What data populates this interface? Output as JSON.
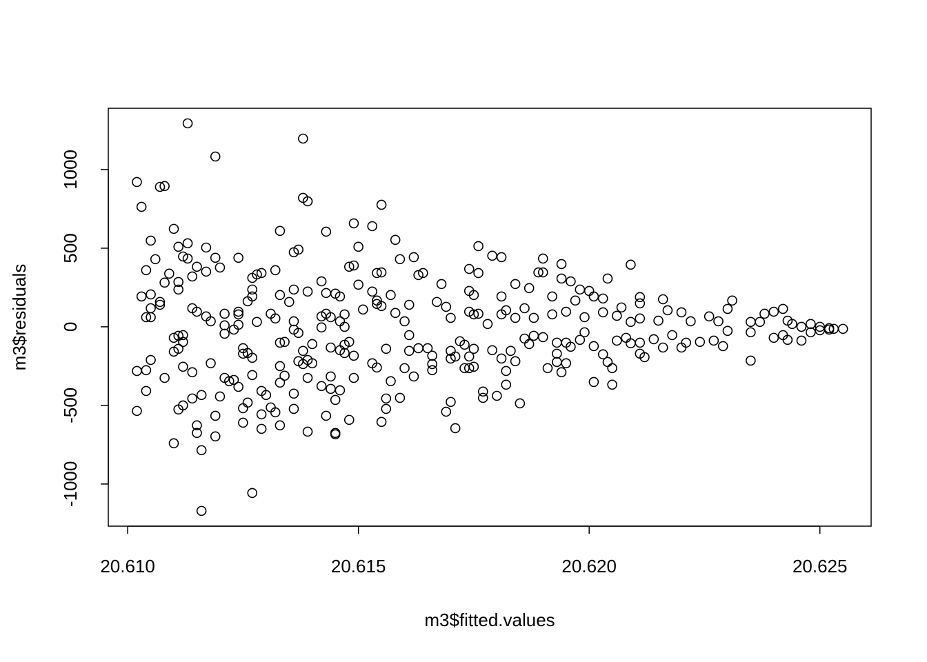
{
  "chart_data": {
    "type": "scatter",
    "x_label": "m3$fitted.values",
    "y_label": "m3$residuals",
    "xlim": [
      20.60958,
      20.62611
    ],
    "ylim": [
      -1268,
      1390
    ],
    "xticks": [
      {
        "value": 20.61,
        "label": "20.610"
      },
      {
        "value": 20.615,
        "label": "20.615"
      },
      {
        "value": 20.62,
        "label": "20.620"
      },
      {
        "value": 20.625,
        "label": "20.625"
      }
    ],
    "yticks": [
      -1000,
      -500,
      0,
      500,
      1000
    ],
    "color": "#000000",
    "x": [
      20.6113,
      20.6138,
      20.6119,
      20.6102,
      20.6107,
      20.6108,
      20.6103,
      20.6138,
      20.6139,
      20.6155,
      20.611,
      20.6133,
      20.6149,
      20.6153,
      20.6143,
      20.6105,
      20.6111,
      20.6113,
      20.6117,
      20.6137,
      20.615,
      20.6158,
      20.6176,
      20.6179,
      20.6181,
      20.619,
      20.6209,
      20.6194,
      20.6106,
      20.6112,
      20.6113,
      20.6115,
      20.6119,
      20.6124,
      20.6129,
      20.6132,
      20.6104,
      20.6109,
      20.6117,
      20.612,
      20.6127,
      20.6128,
      20.6136,
      20.6142,
      20.6148,
      20.6149,
      20.615,
      20.6154,
      20.6155,
      20.6159,
      20.6162,
      20.6164,
      20.6163,
      20.6168,
      20.6174,
      20.6176,
      20.6184,
      20.6187,
      20.6189,
      20.619,
      20.6194,
      20.6196,
      20.6198,
      20.62,
      20.6204,
      20.6111,
      20.6108,
      20.6114,
      20.6111,
      20.6103,
      20.6105,
      20.6127,
      20.6127,
      20.6133,
      20.6136,
      20.6139,
      20.6143,
      20.6145,
      20.6146,
      20.6153,
      20.6154,
      20.6157,
      20.6174,
      20.6175,
      20.6181,
      20.6192,
      20.6197,
      20.6201,
      20.6203,
      20.6211,
      20.6216,
      20.6211,
      20.6107,
      20.6107,
      20.6105,
      20.6104,
      20.6105,
      20.6114,
      20.6115,
      20.6117,
      20.6118,
      20.6121,
      20.6121,
      20.6124,
      20.6124,
      20.6126,
      20.6128,
      20.6124,
      20.6131,
      20.6132,
      20.6135,
      20.6136,
      20.6136,
      20.6137,
      20.6142,
      20.6143,
      20.6142,
      20.6144,
      20.6146,
      20.6147,
      20.6147,
      20.6151,
      20.6154,
      20.6155,
      20.6158,
      20.6161,
      20.616,
      20.6167,
      20.6169,
      20.617,
      20.6174,
      20.6175,
      20.6176,
      20.6178,
      20.6181,
      20.6182,
      20.6184,
      20.6186,
      20.6188,
      20.6192,
      20.6195,
      20.6199,
      20.6203,
      20.6206,
      20.6207,
      20.6209,
      20.6211,
      20.6215,
      20.6217,
      20.622,
      20.6222,
      20.6226,
      20.6228,
      20.6231,
      20.623,
      20.6235,
      20.6237,
      20.6238,
      20.624,
      20.6242,
      20.6243,
      20.6244,
      20.6246,
      20.6248,
      20.625,
      20.6252,
      20.6255,
      20.6253,
      20.6102,
      20.6102,
      20.6104,
      20.6104,
      20.6105,
      20.6108,
      20.611,
      20.611,
      20.6111,
      20.6111,
      20.6111,
      20.611,
      20.6112,
      20.6112,
      20.6112,
      20.6112,
      20.6114,
      20.6114,
      20.6116,
      20.6115,
      20.6115,
      20.6116,
      20.6116,
      20.6118,
      20.6119,
      20.6119,
      20.612,
      20.6121,
      20.6123,
      20.6121,
      20.6122,
      20.6123,
      20.6124,
      20.6125,
      20.6125,
      20.6125,
      20.6125,
      20.6126,
      20.6126,
      20.6127,
      20.6127,
      20.6127,
      20.6129,
      20.6129,
      20.6129,
      20.613,
      20.6131,
      20.6132,
      20.6133,
      20.6133,
      20.6133,
      20.6133,
      20.6134,
      20.6134,
      20.6136,
      20.6136,
      20.6137,
      20.6138,
      20.6138,
      20.6139,
      20.6139,
      20.614,
      20.6139,
      20.614,
      20.6142,
      20.6143,
      20.6144,
      20.6144,
      20.6144,
      20.6145,
      20.6146,
      20.6146,
      20.6145,
      20.6145,
      20.6147,
      20.6147,
      20.6148,
      20.6148,
      20.6149,
      20.6149,
      20.6153,
      20.6154,
      20.6156,
      20.6156,
      20.6156,
      20.6155,
      20.6157,
      20.6159,
      20.616,
      20.6161,
      20.6161,
      20.6162,
      20.6163,
      20.6165,
      20.6166,
      20.6166,
      20.6166,
      20.6169,
      20.617,
      20.617,
      20.617,
      20.6171,
      20.6171,
      20.6172,
      20.6173,
      20.6173,
      20.6174,
      20.6174,
      20.6175,
      20.6175,
      20.6177,
      20.6177,
      20.6179,
      20.618,
      20.6181,
      20.6182,
      20.6182,
      20.6183,
      20.6184,
      20.6185,
      20.6186,
      20.6187,
      20.6188,
      20.619,
      20.6191,
      20.6193,
      20.6193,
      20.6193,
      20.6194,
      20.6195,
      20.6195,
      20.6196,
      20.6198,
      20.6199,
      20.6201,
      20.6201,
      20.6203,
      20.6204,
      20.6205,
      20.6205,
      20.6206,
      20.6208,
      20.6209,
      20.6211,
      20.6211,
      20.6212,
      20.6214,
      20.6216,
      20.6218,
      20.622,
      20.6221,
      20.6224,
      20.6227,
      20.6229,
      20.623,
      20.6235,
      20.6235,
      20.624,
      20.6243,
      20.6246,
      20.6248,
      20.625,
      20.6252,
      20.6242
    ],
    "y": [
      1294,
      1197,
      1083,
      921,
      890,
      895,
      763,
      820,
      798,
      776,
      623,
      610,
      658,
      640,
      605,
      548,
      509,
      531,
      504,
      491,
      509,
      553,
      513,
      452,
      443,
      434,
      395,
      399,
      430,
      447,
      434,
      382,
      439,
      439,
      342,
      360,
      360,
      338,
      351,
      377,
      311,
      333,
      474,
      289,
      382,
      390,
      268,
      342,
      346,
      430,
      443,
      342,
      329,
      272,
      368,
      342,
      272,
      246,
      346,
      346,
      307,
      289,
      237,
      228,
      307,
      285,
      281,
      320,
      237,
      193,
      206,
      237,
      193,
      202,
      237,
      224,
      215,
      211,
      193,
      224,
      167,
      202,
      228,
      202,
      193,
      193,
      167,
      193,
      180,
      149,
      175,
      189,
      158,
      140,
      118,
      61,
      61,
      118,
      96,
      66,
      35,
      9,
      83,
      96,
      79,
      162,
      31,
      13,
      83,
      53,
      158,
      35,
      -18,
      -39,
      66,
      83,
      -4,
      61,
      35,
      0,
      79,
      110,
      145,
      132,
      88,
      140,
      35,
      158,
      127,
      57,
      96,
      79,
      83,
      18,
      79,
      105,
      57,
      118,
      57,
      79,
      96,
      61,
      92,
      70,
      123,
      31,
      53,
      39,
      105,
      92,
      35,
      66,
      35,
      167,
      114,
      31,
      31,
      83,
      96,
      114,
      39,
      18,
      0,
      18,
      0,
      -9,
      -13,
      -13,
      -281,
      -535,
      -276,
      -408,
      -211,
      -325,
      -70,
      -158,
      -57,
      -140,
      -526,
      -741,
      -96,
      -53,
      -254,
      -500,
      -289,
      -456,
      -434,
      -627,
      -675,
      -785,
      -1171,
      -232,
      -697,
      -566,
      -443,
      -44,
      -18,
      -325,
      -346,
      -338,
      -382,
      -136,
      -171,
      -518,
      -610,
      -482,
      -167,
      -307,
      -197,
      -1057,
      -557,
      -408,
      -649,
      -434,
      -513,
      -544,
      -101,
      -250,
      -355,
      -627,
      -311,
      -96,
      -522,
      -425,
      -219,
      -237,
      -153,
      -325,
      -211,
      -110,
      -667,
      -232,
      -377,
      -566,
      -132,
      -395,
      -316,
      -465,
      -149,
      -404,
      -675,
      -684,
      -114,
      -167,
      -592,
      -96,
      -184,
      -325,
      -232,
      -259,
      -140,
      -456,
      -522,
      -605,
      -346,
      -452,
      -263,
      -53,
      -153,
      -316,
      -136,
      -136,
      -184,
      -276,
      -237,
      -540,
      -153,
      -202,
      -478,
      -645,
      -189,
      -92,
      -263,
      -114,
      -189,
      -263,
      -254,
      -140,
      -452,
      -412,
      -149,
      -439,
      -202,
      -281,
      -368,
      -153,
      -219,
      -487,
      -75,
      -110,
      -57,
      -66,
      -263,
      -224,
      -171,
      -101,
      -289,
      -101,
      -232,
      -127,
      -83,
      -35,
      -351,
      -123,
      -175,
      -224,
      -263,
      -368,
      -88,
      -70,
      -105,
      -101,
      -171,
      -193,
      -79,
      -132,
      -53,
      -132,
      -101,
      -96,
      -88,
      -123,
      -26,
      -215,
      -35,
      -70,
      -83,
      -88,
      -35,
      -22,
      -18,
      -53
    ]
  }
}
